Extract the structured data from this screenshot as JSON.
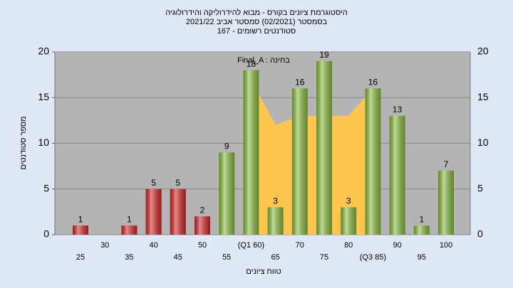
{
  "chart_data": {
    "type": "bar",
    "title": [
      "היסטוגרמת ציונים בקורס - מבוא להידרוליקה והידרולוגיה",
      "בסמסטר  (02/2021)  סמסטר אביב  2021/22",
      "סטודנטים רשומים - 167"
    ],
    "annotation": "Final_A : בחינה",
    "x_label": "טווח ציונים",
    "y_label": "מספר סטודנטים",
    "categories": [
      "25",
      "30",
      "35",
      "40",
      "45",
      "50",
      "55",
      "(Q1 60)",
      "65",
      "70",
      "75",
      "80",
      "(Q3 85)",
      "90",
      "95",
      "100"
    ],
    "series": [
      {
        "values": [
          1,
          0,
          1,
          5,
          5,
          2,
          9,
          18,
          3,
          16,
          19,
          3,
          16,
          13,
          1,
          7
        ],
        "colors": [
          "#d8262b",
          "#d8262b",
          "#d8262b",
          "#d8262b",
          "#d8262b",
          "#d8262b",
          "#8cbf3f",
          "#8cbf3f",
          "#8cbf3f",
          "#8cbf3f",
          "#8cbf3f",
          "#8cbf3f",
          "#8cbf3f",
          "#8cbf3f",
          "#8cbf3f",
          "#8cbf3f"
        ]
      },
      {
        "type": "area",
        "color": "#ffc64f",
        "values": [
          null,
          null,
          null,
          null,
          null,
          null,
          null,
          17,
          12,
          13,
          13,
          13,
          16,
          null,
          null,
          null
        ]
      }
    ],
    "ylim": [
      0,
      20
    ],
    "yticks": [
      0,
      5,
      10,
      15,
      20
    ],
    "grid": true
  }
}
